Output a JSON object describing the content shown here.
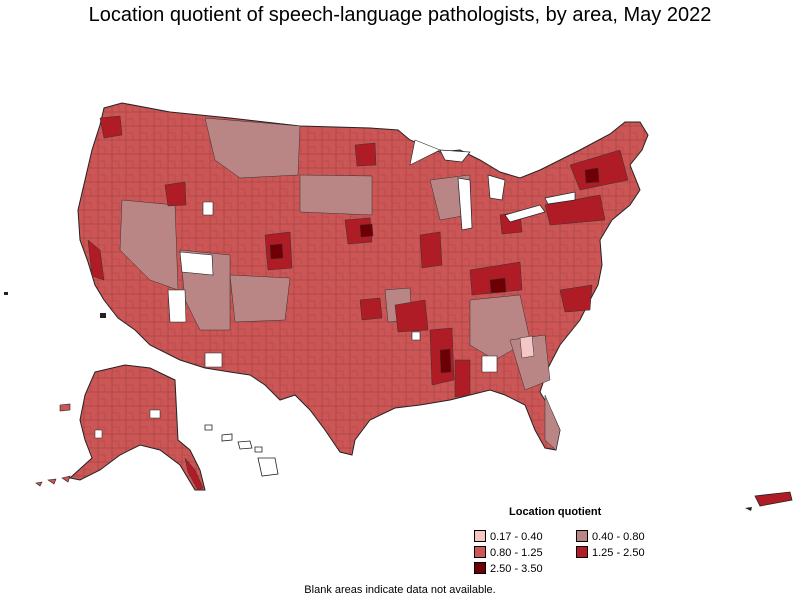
{
  "title": "Location quotient of speech-language pathologists, by area, May 2022",
  "legend": {
    "title": "Location quotient",
    "items": [
      {
        "label": "0.17 - 0.40",
        "color": "#f5c6c6"
      },
      {
        "label": "0.40 - 0.80",
        "color": "#b98585"
      },
      {
        "label": "0.80 - 1.25",
        "color": "#cc5555"
      },
      {
        "label": "1.25 - 2.50",
        "color": "#b01c26"
      },
      {
        "label": "2.50 - 3.50",
        "color": "#6e0005"
      }
    ]
  },
  "footnote": "Blank areas indicate data not available."
}
